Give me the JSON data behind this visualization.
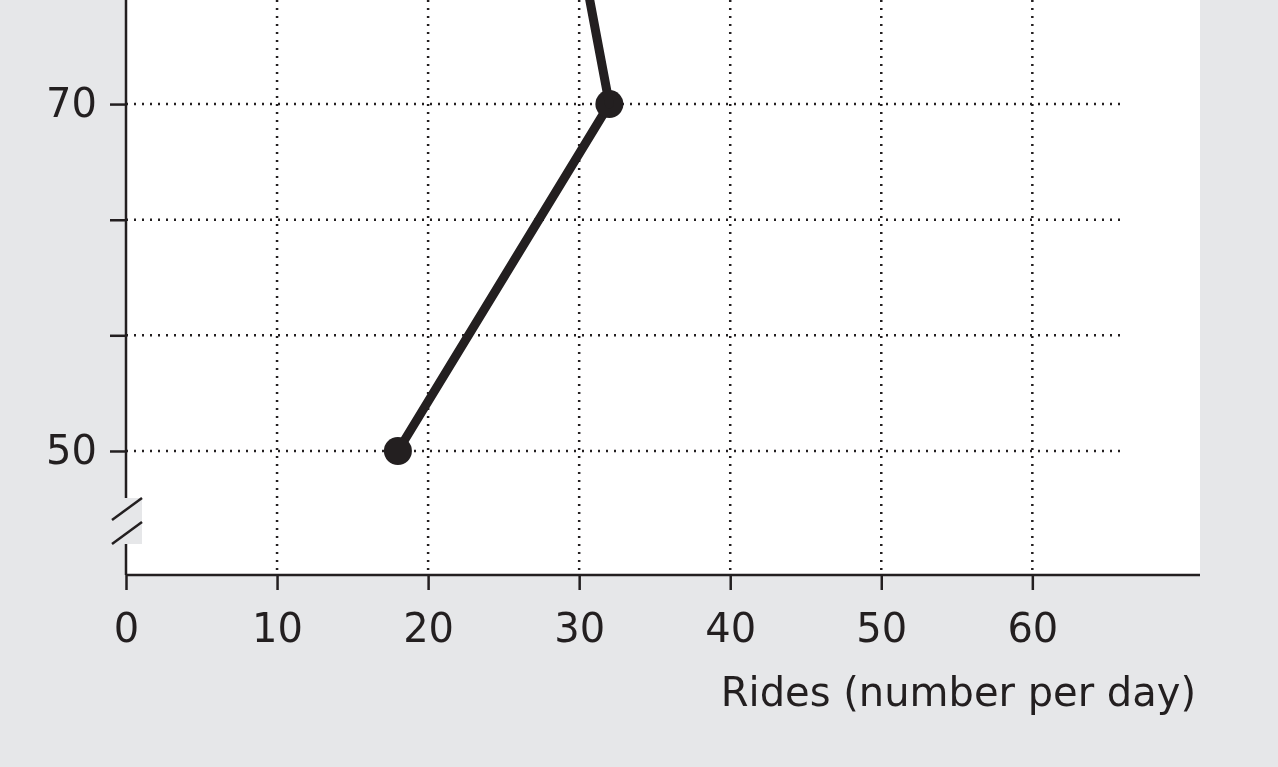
{
  "chart_data": {
    "type": "line",
    "xlabel": "Rides (number per day)",
    "xlim": [
      0,
      71.1
    ],
    "xticks": [
      0,
      10,
      20,
      30,
      40,
      50,
      60
    ],
    "ylim": [
      42.85,
      76
    ],
    "yticks": [
      50,
      {
        "value": 56.67,
        "label": null
      },
      {
        "value": 63.33,
        "label": null
      },
      70
    ],
    "grid": true,
    "line_style": "solid",
    "series": [
      {
        "color": "#231f20",
        "marker": "circle",
        "x": [
          18,
          32
        ],
        "values": [
          50,
          70
        ]
      },
      {
        "color": "#231f20",
        "marker": "none",
        "x": [
          32,
          30.7
        ],
        "values": [
          70,
          76
        ]
      }
    ]
  }
}
